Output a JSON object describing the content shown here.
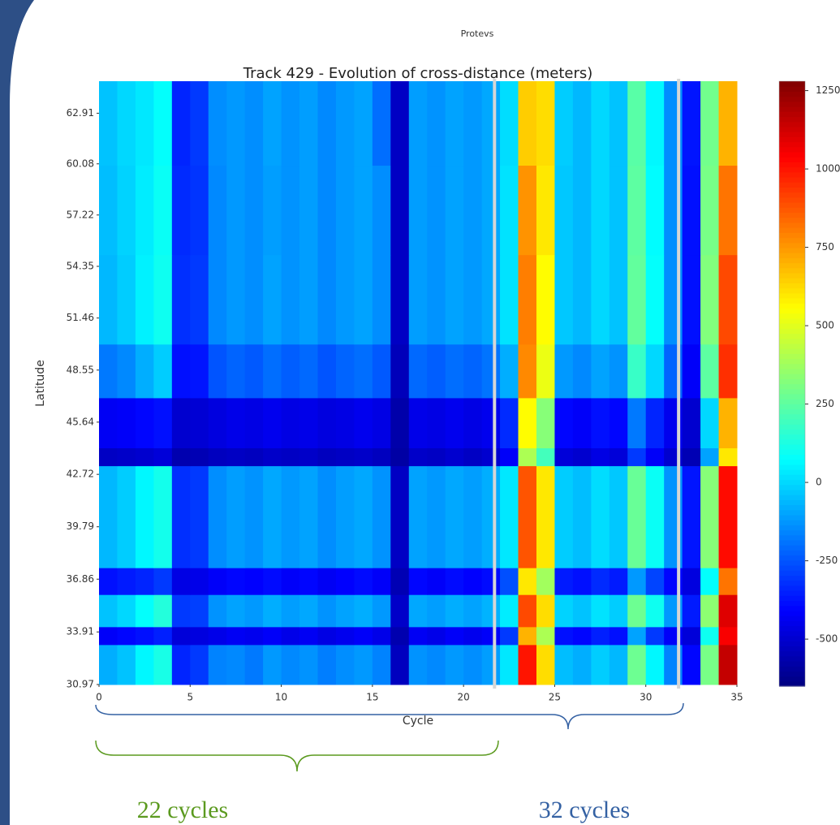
{
  "chart_data": {
    "type": "heatmap",
    "suptitle": "Protevs",
    "title": "Track 429 - Evolution of cross-distance (meters)",
    "xlabel": "Cycle",
    "ylabel": "Latitude",
    "xlim": [
      0,
      35
    ],
    "xticks": [
      0,
      5,
      10,
      15,
      20,
      25,
      30,
      35
    ],
    "ylim": [
      30.97,
      64.7
    ],
    "yticks": [
      30.97,
      33.91,
      36.86,
      39.79,
      42.72,
      45.64,
      48.55,
      51.46,
      54.35,
      57.22,
      60.08,
      62.91
    ],
    "colormap": "jet",
    "zlim": [
      -650,
      1280
    ],
    "colorbar_ticks": [
      -500,
      -250,
      0,
      250,
      500,
      750,
      1000,
      1250
    ],
    "x_edges": [
      0,
      1,
      2,
      3,
      4,
      5,
      6,
      7,
      8,
      9,
      10,
      11,
      12,
      13,
      14,
      15,
      16,
      17,
      18,
      19,
      20,
      21,
      22,
      23,
      24,
      25,
      26,
      27,
      28,
      29,
      30,
      31,
      32,
      33,
      34,
      35
    ],
    "y_edges": [
      30.97,
      33.2,
      34.2,
      36.0,
      37.5,
      43.2,
      44.2,
      47.0,
      50.0,
      55.0,
      60.0,
      64.7
    ],
    "values": [
      [
        -80,
        -40,
        60,
        120,
        -340,
        -300,
        -160,
        -150,
        -180,
        -120,
        -150,
        -130,
        -170,
        -140,
        -120,
        -160,
        -530,
        -130,
        -150,
        -120,
        -140,
        -110,
        30,
        1000,
        620,
        -50,
        -80,
        -20,
        -60,
        280,
        60,
        -160,
        -400,
        300,
        1150
      ],
      [
        -420,
        -400,
        -380,
        -350,
        -480,
        -470,
        -450,
        -430,
        -440,
        -420,
        -450,
        -430,
        -460,
        -440,
        -420,
        -450,
        -560,
        -430,
        -450,
        -420,
        -440,
        -420,
        -300,
        700,
        400,
        -380,
        -400,
        -350,
        -380,
        -100,
        -300,
        -420,
        -480,
        100,
        1050
      ],
      [
        -40,
        0,
        80,
        140,
        -300,
        -290,
        -130,
        -100,
        -120,
        -80,
        -110,
        -90,
        -130,
        -100,
        -80,
        -120,
        -510,
        -90,
        -110,
        -80,
        -100,
        -70,
        40,
        900,
        620,
        -10,
        -40,
        20,
        -20,
        280,
        100,
        -120,
        -360,
        340,
        1100
      ],
      [
        -380,
        -360,
        -340,
        -300,
        -460,
        -450,
        -420,
        -400,
        -410,
        -390,
        -420,
        -400,
        -430,
        -410,
        -390,
        -420,
        -550,
        -400,
        -420,
        -390,
        -410,
        -390,
        -260,
        600,
        380,
        -360,
        -380,
        -330,
        -360,
        -120,
        -280,
        -400,
        -470,
        80,
        820
      ],
      [
        -60,
        -20,
        60,
        110,
        -320,
        -300,
        -140,
        -110,
        -130,
        -90,
        -120,
        -100,
        -140,
        -110,
        -90,
        -130,
        -520,
        -100,
        -120,
        -90,
        -110,
        -80,
        30,
        880,
        600,
        -20,
        -50,
        10,
        -30,
        270,
        90,
        -130,
        -370,
        330,
        1020
      ],
      [
        -520,
        -510,
        -500,
        -480,
        -560,
        -550,
        -530,
        -520,
        -530,
        -510,
        -520,
        -510,
        -530,
        -520,
        -510,
        -530,
        -580,
        -510,
        -520,
        -500,
        -520,
        -500,
        -420,
        400,
        200,
        -480,
        -500,
        -460,
        -480,
        -300,
        -420,
        -500,
        -550,
        -100,
        600
      ],
      [
        -430,
        -420,
        -400,
        -380,
        -500,
        -490,
        -470,
        -450,
        -460,
        -440,
        -460,
        -450,
        -470,
        -460,
        -440,
        -460,
        -570,
        -450,
        -460,
        -440,
        -460,
        -440,
        -330,
        560,
        330,
        -400,
        -420,
        -380,
        -400,
        -180,
        -340,
        -440,
        -500,
        0,
        700
      ],
      [
        -180,
        -150,
        -80,
        -20,
        -380,
        -370,
        -250,
        -220,
        -240,
        -200,
        -230,
        -210,
        -250,
        -220,
        -200,
        -240,
        -540,
        -210,
        -230,
        -200,
        -220,
        -190,
        -80,
        780,
        520,
        -120,
        -150,
        -100,
        -130,
        180,
        0,
        -220,
        -420,
        250,
        950
      ],
      [
        -60,
        -20,
        50,
        100,
        -320,
        -300,
        -150,
        -120,
        -140,
        -100,
        -130,
        -110,
        -150,
        -120,
        -100,
        -140,
        -520,
        -110,
        -130,
        -100,
        -120,
        -90,
        20,
        800,
        560,
        -30,
        -60,
        0,
        -40,
        260,
        80,
        -140,
        -380,
        320,
        900
      ],
      [
        -50,
        -10,
        40,
        90,
        -330,
        -310,
        -150,
        -120,
        -140,
        -110,
        -130,
        -110,
        -150,
        -120,
        -100,
        -140,
        -520,
        -110,
        -130,
        -100,
        -120,
        -90,
        20,
        760,
        600,
        -30,
        -60,
        0,
        -40,
        250,
        70,
        -140,
        -380,
        300,
        820
      ],
      [
        -40,
        0,
        30,
        80,
        -340,
        -300,
        -140,
        -120,
        -140,
        -100,
        -130,
        -110,
        -150,
        -120,
        -100,
        -200,
        -520,
        -110,
        -130,
        -100,
        -120,
        -90,
        10,
        650,
        620,
        -20,
        -60,
        0,
        -40,
        240,
        60,
        -140,
        -370,
        290,
        700
      ]
    ],
    "dividers": [
      21.7,
      31.8
    ],
    "divider_color": "#d6d6d6",
    "annotations": [
      {
        "text": "22 cycles",
        "color": "#5b9a1f"
      },
      {
        "text": "32 cycles",
        "color": "#3461a3"
      }
    ]
  }
}
